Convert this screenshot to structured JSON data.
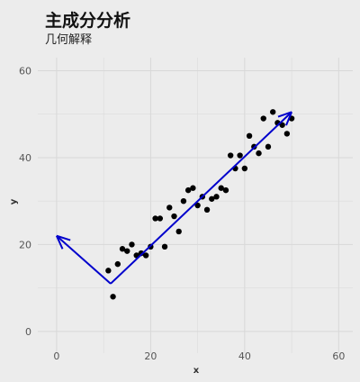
{
  "header": {
    "title": "主成分分析",
    "subtitle": "几何解释"
  },
  "chart_data": {
    "type": "scatter",
    "title": "主成分分析",
    "subtitle": "几何解释",
    "xlabel": "x",
    "ylabel": "y",
    "xlim": [
      -4,
      63
    ],
    "ylim": [
      -5,
      63
    ],
    "x_ticks": [
      0,
      20,
      40,
      60
    ],
    "y_ticks": [
      0,
      20,
      40,
      60
    ],
    "grid": true,
    "colors": {
      "points": "#000000",
      "arrows": "#0000cc",
      "grid": "#d8d8d8",
      "background": "#ececec"
    },
    "series": [
      {
        "values": [
          [
            11,
            14
          ],
          [
            12,
            8
          ],
          [
            13,
            15.5
          ],
          [
            14,
            19
          ],
          [
            15,
            18.5
          ],
          [
            16,
            20
          ],
          [
            17,
            17.5
          ],
          [
            18,
            18
          ],
          [
            19,
            17.5
          ],
          [
            20,
            19.5
          ],
          [
            21,
            26
          ],
          [
            22,
            26
          ],
          [
            23,
            19.5
          ],
          [
            24,
            28.5
          ],
          [
            25,
            26.5
          ],
          [
            26,
            23
          ],
          [
            27,
            30
          ],
          [
            28,
            32.5
          ],
          [
            29,
            33
          ],
          [
            30,
            29
          ],
          [
            31,
            31
          ],
          [
            32,
            28
          ],
          [
            33,
            30.5
          ],
          [
            34,
            31
          ],
          [
            35,
            33
          ],
          [
            36,
            32.5
          ],
          [
            37,
            40.5
          ],
          [
            38,
            37.5
          ],
          [
            39,
            40.5
          ],
          [
            40,
            37.5
          ],
          [
            41,
            45
          ],
          [
            42,
            42.5
          ],
          [
            43,
            41
          ],
          [
            44,
            49
          ],
          [
            45,
            42.5
          ],
          [
            46,
            50.5
          ],
          [
            47,
            48
          ],
          [
            48,
            47.5
          ],
          [
            49,
            45.5
          ],
          [
            50,
            49
          ]
        ]
      }
    ],
    "arrows": [
      {
        "from": [
          11.5,
          11
        ],
        "to": [
          0,
          22
        ]
      },
      {
        "from": [
          11.5,
          11
        ],
        "to": [
          50,
          50.5
        ]
      }
    ]
  }
}
